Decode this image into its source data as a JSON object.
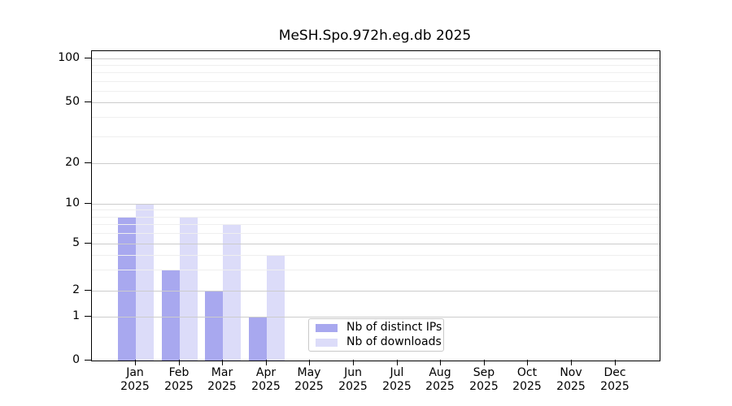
{
  "title": "MeSH.Spo.972h.eg.db 2025",
  "chart_data": {
    "type": "bar",
    "title": "MeSH.Spo.972h.eg.db 2025",
    "categories": [
      "Jan",
      "Feb",
      "Mar",
      "Apr",
      "May",
      "Jun",
      "Jul",
      "Aug",
      "Sep",
      "Oct",
      "Nov",
      "Dec"
    ],
    "category_year": "2025",
    "series": [
      {
        "name": "Nb of distinct IPs",
        "color": "#a8a8ef",
        "values": [
          8,
          3,
          2,
          1,
          0,
          0,
          0,
          0,
          0,
          0,
          0,
          0
        ]
      },
      {
        "name": "Nb of downloads",
        "color": "#dcdcf9",
        "values": [
          10,
          8,
          7,
          4,
          0,
          0,
          0,
          0,
          0,
          0,
          0,
          0
        ]
      }
    ],
    "xlabel": "",
    "ylabel": "",
    "ylim": [
      0,
      100
    ],
    "y_scale": "log-like",
    "y_ticks": [
      0,
      1,
      2,
      5,
      10,
      20,
      50,
      100
    ],
    "y_minor_gridlines": [
      3,
      4,
      6,
      7,
      8,
      9,
      30,
      40,
      60,
      70,
      80,
      90
    ],
    "grid": "horizontal",
    "legend": {
      "position": "inside-bottom-center",
      "items": [
        {
          "label": "Nb of distinct IPs",
          "swatch_color": "#a8a8ef"
        },
        {
          "label": "Nb of downloads",
          "swatch_color": "#dcdcf9"
        }
      ]
    },
    "colors": {
      "axis": "#000000",
      "major_grid": "#cccccc",
      "minor_grid": "#efefef",
      "background": "#ffffff"
    }
  }
}
